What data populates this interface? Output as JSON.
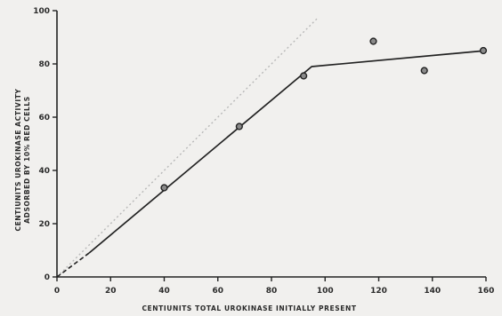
{
  "chart_data": {
    "type": "scatter",
    "xlabel": "CENTIUNITS TOTAL UROKINASE INITIALLY PRESENT",
    "ylabel_line1": "CENTIUNITS UROKINASE ACTIVITY",
    "ylabel_line2": "ADSORBED BY 10% RED CELLS",
    "xlim": [
      0,
      160
    ],
    "ylim": [
      0,
      100
    ],
    "x_ticks": [
      0,
      20,
      40,
      60,
      80,
      100,
      120,
      140,
      160
    ],
    "y_ticks": [
      0,
      20,
      40,
      60,
      80,
      100
    ],
    "grid": false,
    "points": [
      {
        "x": 40,
        "y": 33.5
      },
      {
        "x": 68,
        "y": 56.5
      },
      {
        "x": 92,
        "y": 75.5
      },
      {
        "x": 118,
        "y": 88.5
      },
      {
        "x": 137,
        "y": 77.5
      },
      {
        "x": 159,
        "y": 85
      }
    ],
    "fitted_line": [
      {
        "x": 0,
        "y": 0
      },
      {
        "x": 12,
        "y": 9
      },
      {
        "x": 95,
        "y": 79
      },
      {
        "x": 160,
        "y": 85
      }
    ],
    "fitted_line_dashed_until_x": 12,
    "reference_line": [
      {
        "x": 0,
        "y": 0
      },
      {
        "x": 97,
        "y": 97
      }
    ],
    "colors": {
      "ink": "#222222",
      "faint": "#b8b8b8",
      "background": "#f1f0ee"
    }
  }
}
